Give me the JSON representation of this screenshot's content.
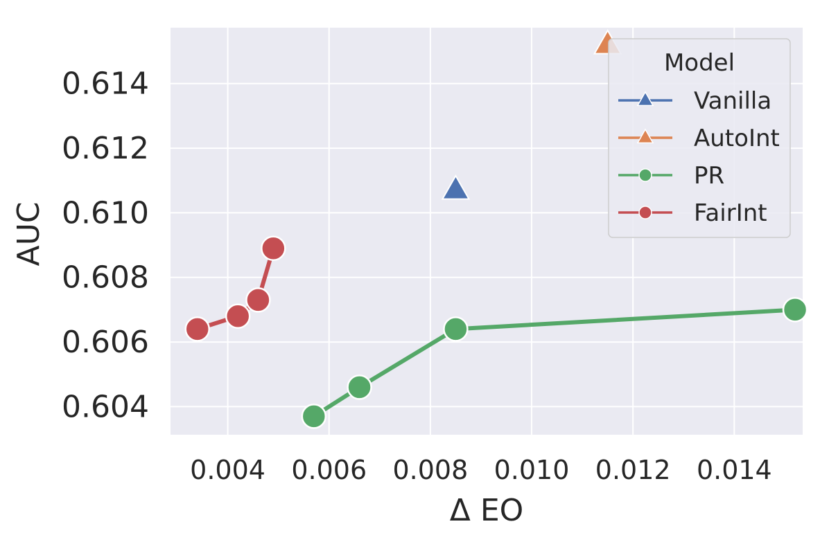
{
  "chart_data": {
    "type": "scatter",
    "title": "",
    "xlabel": "Δ EO",
    "ylabel": "AUC",
    "xlim": [
      0.00287,
      0.01535
    ],
    "ylim": [
      0.60313,
      0.61573
    ],
    "xticks": [
      0.004,
      0.006,
      0.008,
      0.01,
      0.012,
      0.014
    ],
    "xtick_labels": [
      "0.004",
      "0.006",
      "0.008",
      "0.010",
      "0.012",
      "0.014"
    ],
    "yticks": [
      0.604,
      0.606,
      0.608,
      0.61,
      0.612,
      0.614
    ],
    "ytick_labels": [
      "0.604",
      "0.606",
      "0.608",
      "0.610",
      "0.612",
      "0.614"
    ],
    "grid": true,
    "legend": {
      "title": "Model",
      "position": "top-right"
    },
    "colors": {
      "background": "#eaeaf2",
      "grid": "#ffffff",
      "Vanilla": "#4c72b0",
      "AutoInt": "#dd8452",
      "PR": "#55a868",
      "FairInt": "#c44e52"
    },
    "series": [
      {
        "name": "Vanilla",
        "marker": "triangle",
        "connected": false,
        "x": [
          0.0085
        ],
        "y": [
          0.6107
        ]
      },
      {
        "name": "AutoInt",
        "marker": "triangle",
        "connected": false,
        "x": [
          0.0115
        ],
        "y": [
          0.6152
        ]
      },
      {
        "name": "PR",
        "marker": "circle",
        "connected": true,
        "x": [
          0.0057,
          0.0066,
          0.0085,
          0.0152
        ],
        "y": [
          0.6037,
          0.6046,
          0.6064,
          0.607
        ]
      },
      {
        "name": "FairInt",
        "marker": "circle",
        "connected": true,
        "x": [
          0.0034,
          0.0042,
          0.0046,
          0.0049
        ],
        "y": [
          0.6064,
          0.6068,
          0.6073,
          0.6089
        ]
      }
    ]
  }
}
